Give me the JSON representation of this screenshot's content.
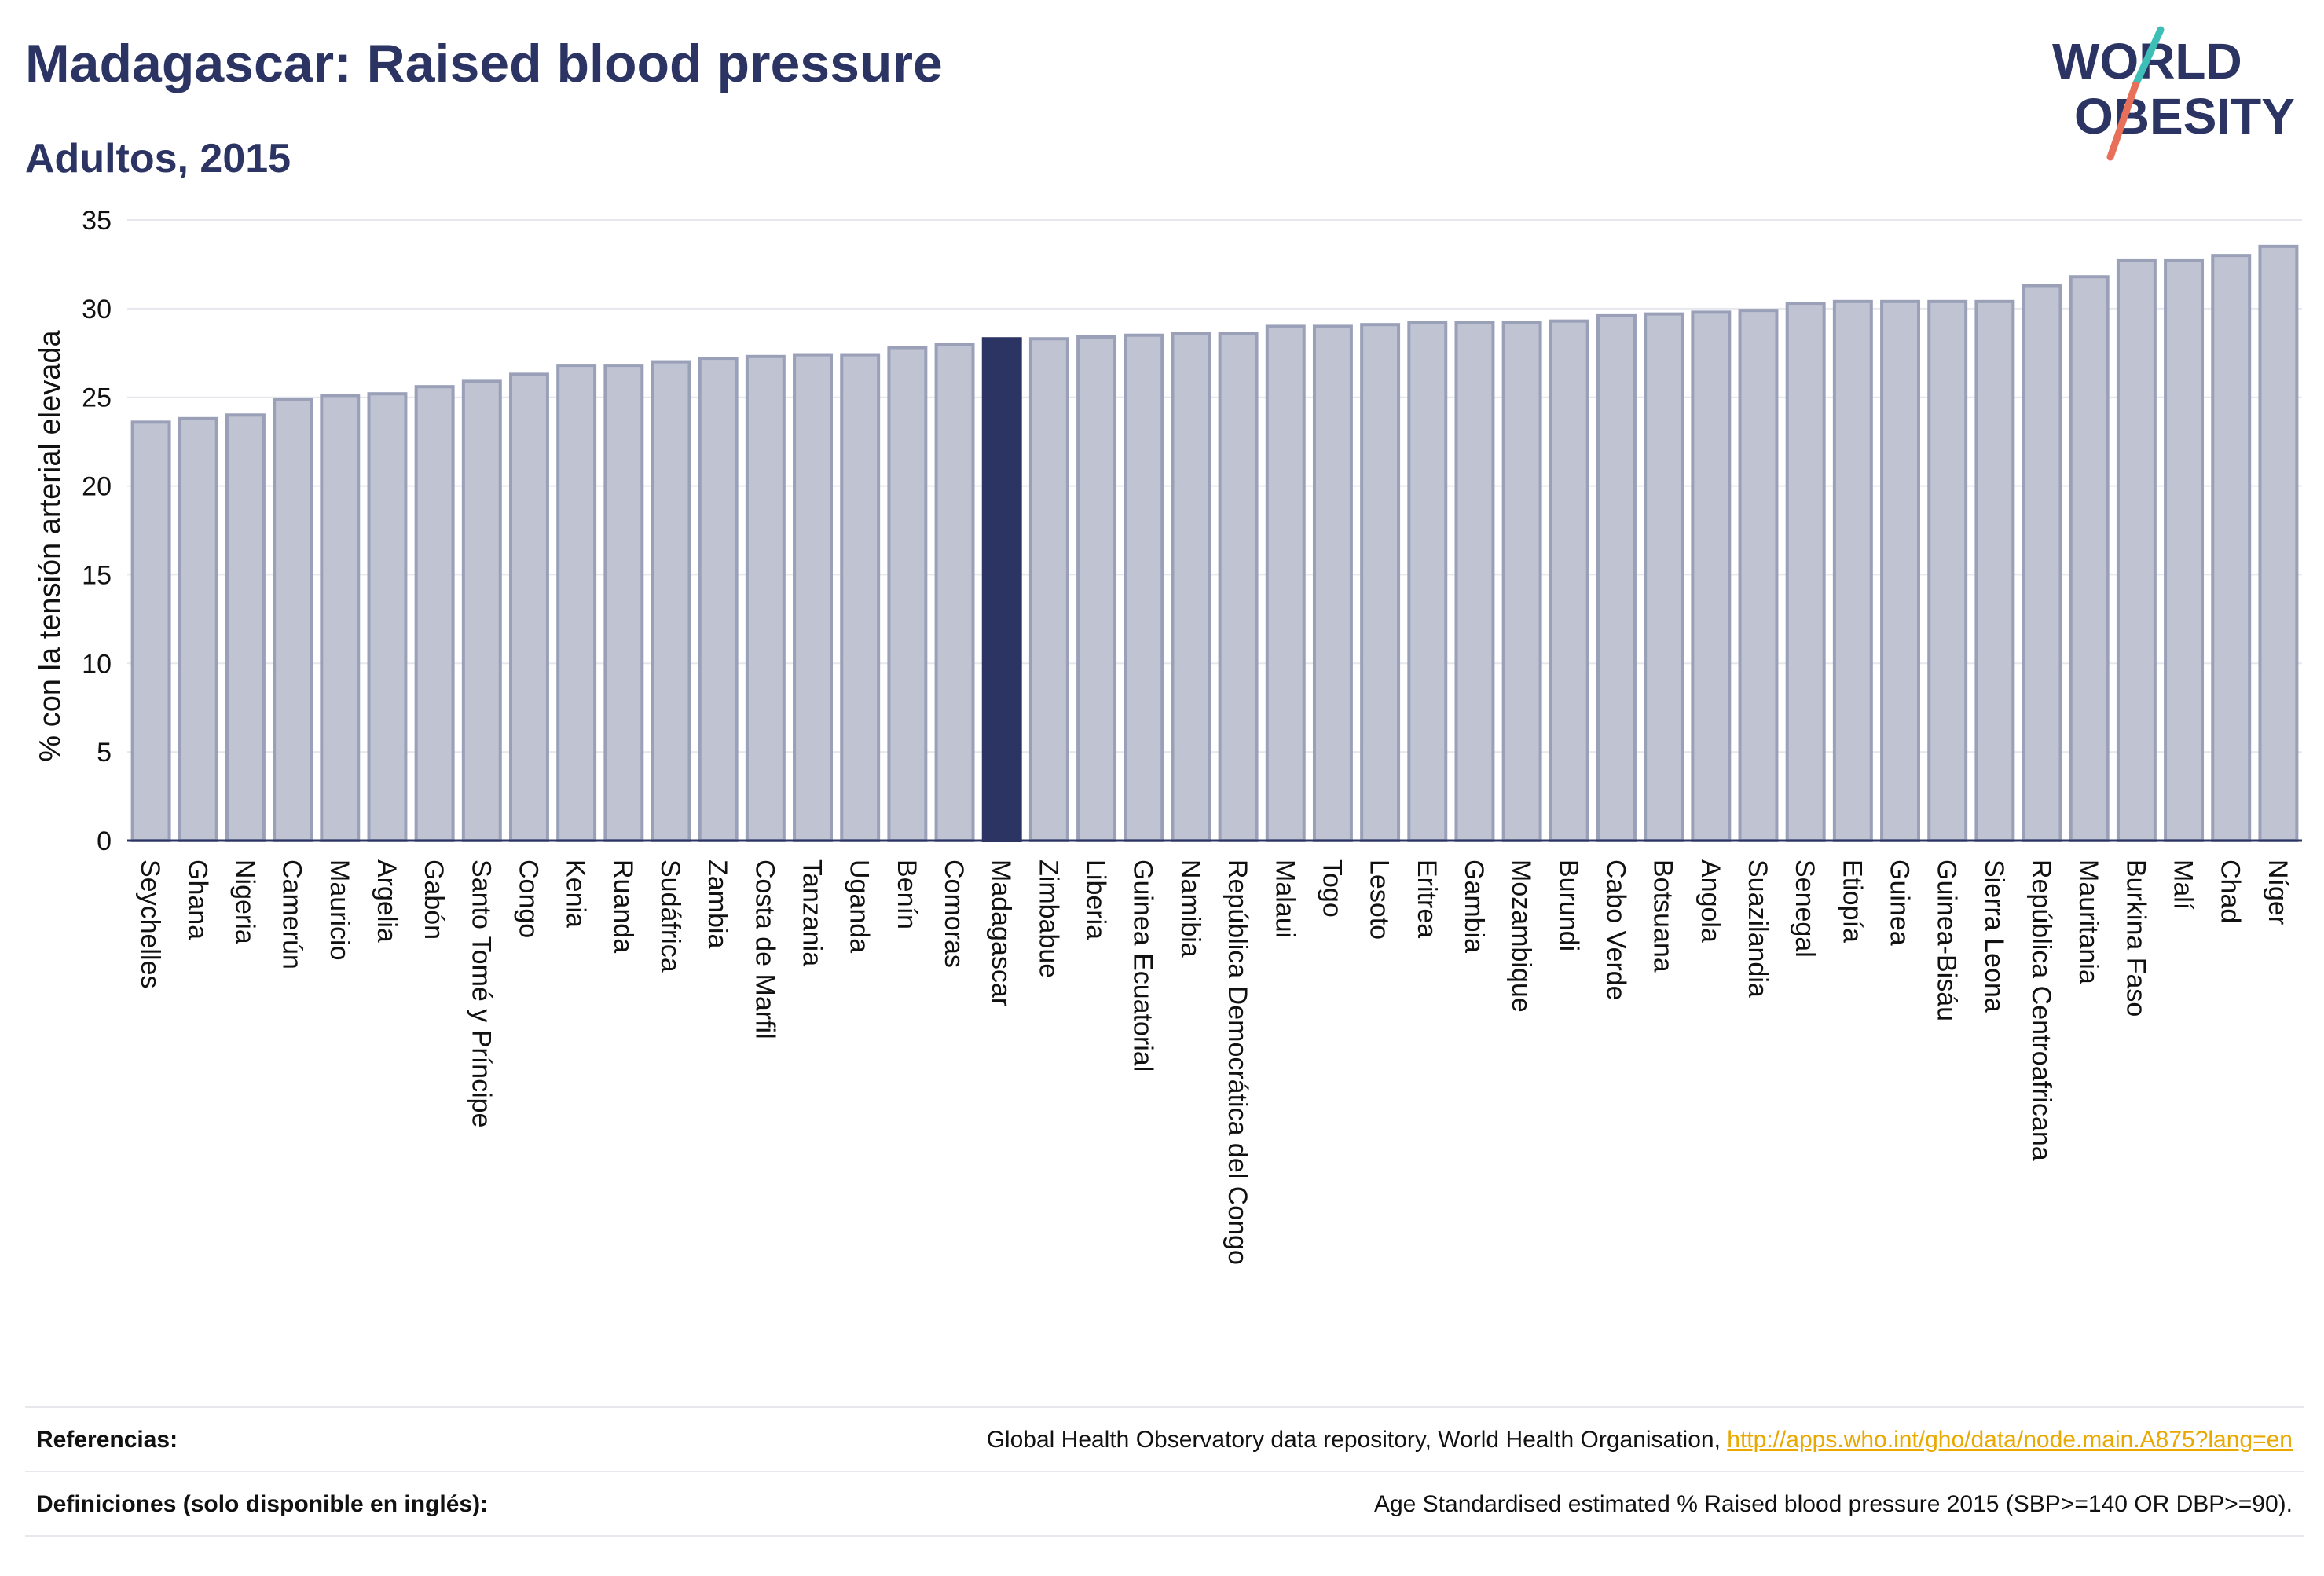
{
  "header": {
    "title": "Madagascar: Raised blood pressure",
    "subtitle": "Adultos, 2015"
  },
  "logo": {
    "line1": "WORLD",
    "line2": "OBESITY",
    "brand_color": "#2b3462",
    "accent_teal": "#3dbfb8",
    "accent_coral": "#e8705a"
  },
  "colors": {
    "bar": "#bfc3d2",
    "bar_edge": "#9aa0b8",
    "highlight": "#2b3462",
    "grid": "#e6e8ee",
    "axis": "#2b3462"
  },
  "chart_data": {
    "type": "bar",
    "ylabel": "% con la tensión arterial elevada",
    "ylim": [
      0,
      35
    ],
    "yticks": [
      0,
      5,
      10,
      15,
      20,
      25,
      30,
      35
    ],
    "grid": true,
    "highlight": "Madagascar",
    "categories": [
      "Seychelles",
      "Ghana",
      "Nigeria",
      "Camerún",
      "Mauricio",
      "Argelia",
      "Gabón",
      "Santo Tomé y Príncipe",
      "Congo",
      "Kenia",
      "Ruanda",
      "Sudáfrica",
      "Zambia",
      "Costa de Marfil",
      "Tanzania",
      "Uganda",
      "Benín",
      "Comoras",
      "Madagascar",
      "Zimbabue",
      "Liberia",
      "Guinea Ecuatorial",
      "Namibia",
      "República Democrática del Congo",
      "Malaui",
      "Togo",
      "Lesoto",
      "Eritrea",
      "Gambia",
      "Mozambique",
      "Burundi",
      "Cabo Verde",
      "Botsuana",
      "Angola",
      "Suazilandia",
      "Senegal",
      "Etiopía",
      "Guinea",
      "Guinea-Bisáu",
      "Sierra Leona",
      "República Centroafricana",
      "Mauritania",
      "Burkina Faso",
      "Malí",
      "Chad",
      "Níger"
    ],
    "values": [
      23.6,
      23.8,
      24.0,
      24.9,
      25.1,
      25.2,
      25.6,
      25.9,
      26.3,
      26.8,
      26.8,
      27.0,
      27.2,
      27.3,
      27.4,
      27.4,
      27.8,
      28.0,
      28.3,
      28.3,
      28.4,
      28.5,
      28.6,
      28.6,
      29.0,
      29.0,
      29.1,
      29.2,
      29.2,
      29.2,
      29.3,
      29.6,
      29.7,
      29.8,
      29.9,
      30.3,
      30.4,
      30.4,
      30.4,
      30.4,
      31.3,
      31.8,
      32.7,
      32.7,
      33.0,
      33.5
    ]
  },
  "footer": {
    "references_label": "Referencias:",
    "references_text": "Global Health Observatory data repository, World Health Organisation, ",
    "references_link": "http://apps.who.int/gho/data/node.main.A875?lang=en",
    "definitions_label": "Definiciones (solo disponible en inglés):",
    "definitions_text": "Age Standardised estimated % Raised blood pressure 2015 (SBP>=140 OR DBP>=90)."
  }
}
